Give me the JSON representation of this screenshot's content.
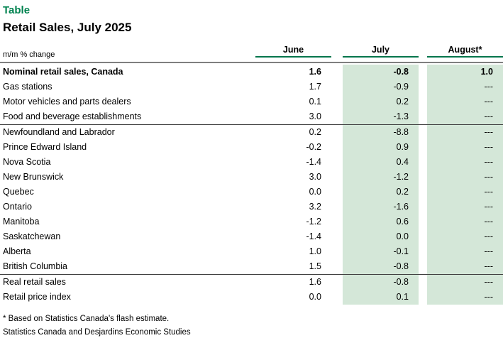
{
  "page": {
    "kicker": "Table",
    "title": "Retail Sales, July 2025",
    "unit_label": "m/m % change"
  },
  "table": {
    "columns": [
      "June",
      "July",
      "August*"
    ],
    "shaded_columns": [
      "July",
      "August*"
    ],
    "blocks": [
      {
        "rows": [
          {
            "label": "Nominal retail sales, Canada",
            "bold": true,
            "values": [
              "1.6",
              "-0.8",
              "1.0"
            ]
          },
          {
            "label": "Gas stations",
            "values": [
              "1.7",
              "-0.9",
              "---"
            ]
          },
          {
            "label": "Motor vehicles and parts dealers",
            "values": [
              "0.1",
              "0.2",
              "---"
            ]
          },
          {
            "label": "Food and beverage establishments",
            "values": [
              "3.0",
              "-1.3",
              "---"
            ]
          }
        ]
      },
      {
        "rows": [
          {
            "label": "Newfoundland and Labrador",
            "values": [
              "0.2",
              "-8.8",
              "---"
            ]
          },
          {
            "label": "Prince Edward Island",
            "values": [
              "-0.2",
              "0.9",
              "---"
            ]
          },
          {
            "label": "Nova Scotia",
            "values": [
              "-1.4",
              "0.4",
              "---"
            ]
          },
          {
            "label": "New Brunswick",
            "values": [
              "3.0",
              "-1.2",
              "---"
            ]
          },
          {
            "label": "Quebec",
            "values": [
              "0.0",
              "0.2",
              "---"
            ]
          },
          {
            "label": "Ontario",
            "values": [
              "3.2",
              "-1.6",
              "---"
            ]
          },
          {
            "label": "Manitoba",
            "values": [
              "-1.2",
              "0.6",
              "---"
            ]
          },
          {
            "label": "Saskatchewan",
            "values": [
              "-1.4",
              "0.0",
              "---"
            ]
          },
          {
            "label": "Alberta",
            "values": [
              "1.0",
              "-0.1",
              "---"
            ]
          },
          {
            "label": "British Columbia",
            "values": [
              "1.5",
              "-0.8",
              "---"
            ]
          }
        ]
      },
      {
        "rows": [
          {
            "label": "Real retail sales",
            "values": [
              "1.6",
              "-0.8",
              "---"
            ]
          },
          {
            "label": "Retail price index",
            "values": [
              "0.0",
              "0.1",
              "---"
            ]
          }
        ]
      }
    ]
  },
  "footnotes": [
    "* Based on Statistics Canada's flash estimate.",
    "Statistics Canada and Desjardins Economic Studies"
  ],
  "colors": {
    "accent_green": "#00824F",
    "header_underline_green": "#00754C",
    "band_green": "#D4E7D8",
    "header_rule_gray": "#7F7F7F",
    "block_rule_dark": "#404040"
  }
}
